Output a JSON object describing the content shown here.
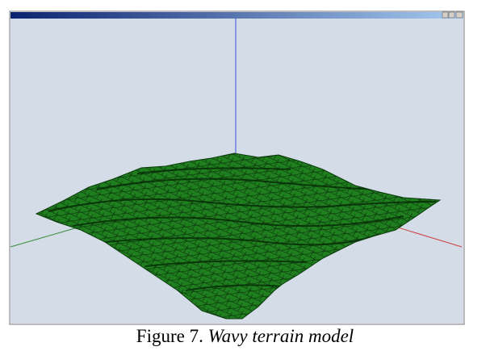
{
  "caption": {
    "label": "Figure 7.",
    "text": "Wavy terrain model"
  }
}
